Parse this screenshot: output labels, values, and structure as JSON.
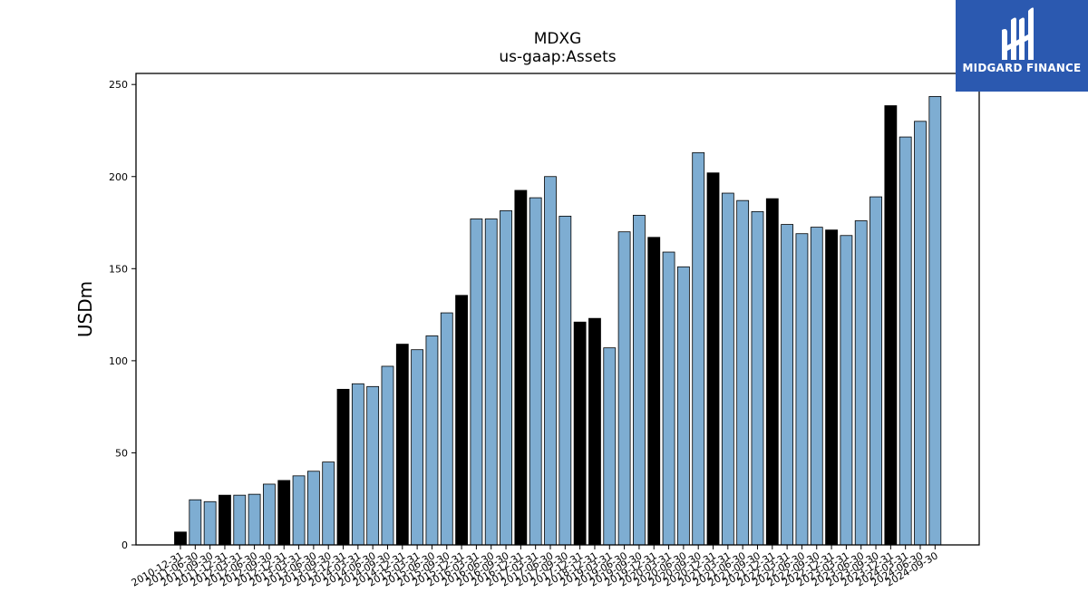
{
  "chart_data": {
    "type": "bar",
    "title": "MDXG",
    "subtitle": "us-gaap:Assets",
    "xlabel": "",
    "ylabel": "USDm",
    "ylim": [
      0,
      256
    ],
    "yticks": [
      0,
      50,
      100,
      150,
      200,
      250
    ],
    "grid": false,
    "colors": {
      "quarter": "#7eadd2",
      "annual": "#000000",
      "edge": "#000000"
    },
    "categories": [
      "2010-12-31",
      "2011-06-30",
      "2011-09-30",
      "2011-12-31",
      "2012-03-31",
      "2012-06-30",
      "2012-09-30",
      "2012-12-31",
      "2013-03-31",
      "2013-06-30",
      "2013-09-30",
      "2013-12-31",
      "2014-03-31",
      "2014-06-30",
      "2014-09-30",
      "2014-12-31",
      "2015-03-31",
      "2015-06-30",
      "2015-09-30",
      "2015-12-31",
      "2016-03-31",
      "2016-06-30",
      "2016-09-30",
      "2016-12-31",
      "2017-03-31",
      "2017-06-30",
      "2017-09-30",
      "2017-12-31",
      "2018-12-31",
      "2019-03-31",
      "2019-06-30",
      "2019-09-30",
      "2019-12-31",
      "2020-03-31",
      "2020-06-30",
      "2020-09-30",
      "2020-12-31",
      "2021-03-31",
      "2021-06-30",
      "2021-09-30",
      "2021-12-31",
      "2022-03-31",
      "2022-06-30",
      "2022-09-30",
      "2022-12-31",
      "2023-03-31",
      "2023-06-30",
      "2023-09-30",
      "2023-12-31",
      "2024-03-31",
      "2024-06-30",
      "2024-09-30"
    ],
    "values": [
      7,
      24.5,
      23.5,
      27,
      27,
      27.5,
      33,
      35,
      37.5,
      40,
      45,
      84.5,
      87.5,
      86,
      97,
      109,
      106,
      113.5,
      126,
      135.5,
      177,
      177,
      181.5,
      192.5,
      188.5,
      200,
      178.5,
      121,
      123,
      107,
      170,
      179,
      167,
      159,
      151,
      213,
      202,
      191,
      187,
      181,
      188,
      174,
      169,
      172.5,
      171,
      168,
      176,
      189,
      238.5,
      221.5,
      230,
      243.5
    ],
    "annual": [
      true,
      false,
      false,
      true,
      false,
      false,
      false,
      true,
      false,
      false,
      false,
      true,
      false,
      false,
      false,
      true,
      false,
      false,
      false,
      true,
      false,
      false,
      false,
      true,
      false,
      false,
      false,
      true,
      true,
      false,
      false,
      false,
      true,
      false,
      false,
      false,
      true,
      false,
      false,
      false,
      true,
      false,
      false,
      false,
      true,
      false,
      false,
      false,
      true,
      false,
      false,
      false
    ]
  },
  "logo": {
    "text": "MIDGARD FINANCE",
    "color": "#2b59b0"
  }
}
